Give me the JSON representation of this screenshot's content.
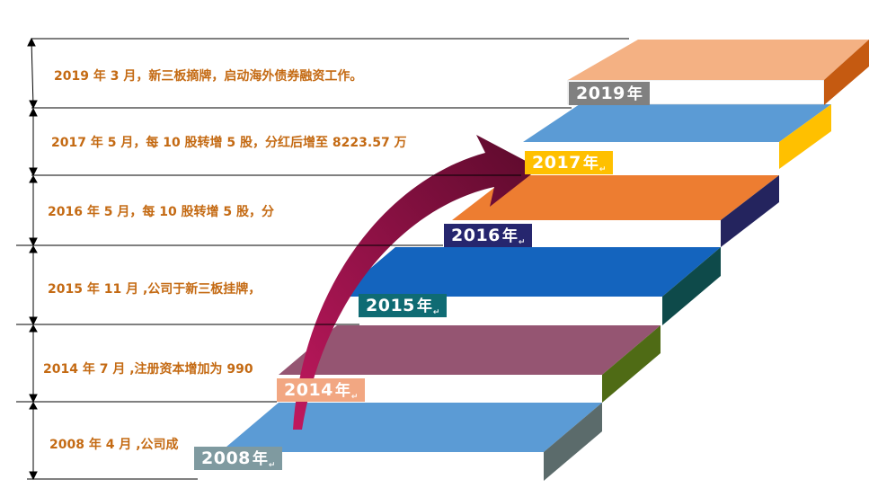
{
  "events": [
    {
      "text": "2019 年 3 月，新三板摘牌，启动海外债券融资工作。"
    },
    {
      "text": "2017 年 5 月，每 10 股转增 5 股，分红后增至 8223.57 万"
    },
    {
      "text": "2016 年 5 月，每 10 股转增 5 股，分"
    },
    {
      "text": "2015 年 11 月 ,公司于新三板挂牌，"
    },
    {
      "text": "2014 年 7 月 ,注册资本增加为 990"
    },
    {
      "text": "2008 年 4 月 ,公司成"
    }
  ],
  "steps": [
    {
      "year": "2008",
      "unit": "年",
      "mark": "↵",
      "top_color": "#5b9bd5",
      "side_color": "#5b6b6b",
      "label_color": "#7f9aa0"
    },
    {
      "year": "2014",
      "unit": "年",
      "mark": "↵",
      "top_color": "#955572",
      "side_color": "#4f6b15",
      "label_color": "#f2a782"
    },
    {
      "year": "2015",
      "unit": "年",
      "mark": "↵",
      "top_color": "#1464be",
      "side_color": "#0e4a4a",
      "label_color": "#0f6b73"
    },
    {
      "year": "2016",
      "unit": "年",
      "mark": "↵",
      "top_color": "#ed7d31",
      "side_color": "#24245e",
      "label_color": "#26266e"
    },
    {
      "year": "2017",
      "unit": "年",
      "mark": "↵",
      "top_color": "#5b9bd5",
      "side_color": "#ffc000",
      "label_color": "#ffc000"
    },
    {
      "year": "2019",
      "unit": "年",
      "mark": "",
      "top_color": "#f4b183",
      "side_color": "#c55a11",
      "label_color": "#808080"
    }
  ],
  "colors": {
    "event_text": "#c46a13",
    "arrow_dark": "#5a0a2b",
    "arrow_light": "#c0185e",
    "divider": "#000000"
  }
}
